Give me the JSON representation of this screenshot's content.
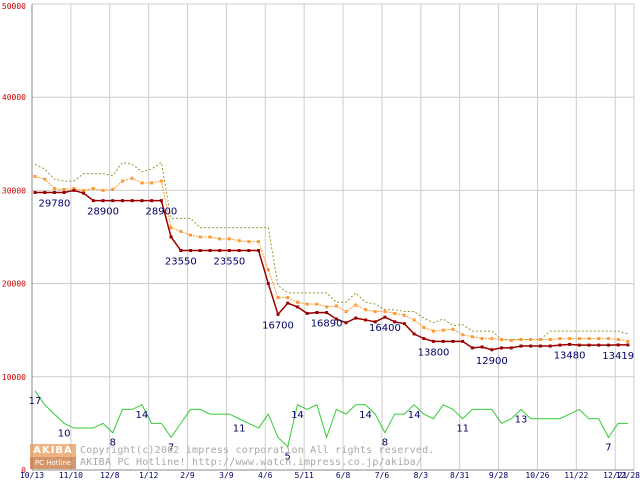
{
  "chart_data": {
    "type": "line",
    "ylim": [
      0,
      50000
    ],
    "y_ticks": [
      {
        "value": 0,
        "label": "0"
      },
      {
        "value": 10000,
        "label": "10000"
      },
      {
        "value": 20000,
        "label": "20000"
      },
      {
        "value": 30000,
        "label": "30000"
      },
      {
        "value": 40000,
        "label": "40000"
      },
      {
        "value": 50000,
        "label": "50000"
      }
    ],
    "x_ticks": [
      {
        "at": 0,
        "label": "10/13"
      },
      {
        "at": 4,
        "label": "11/10"
      },
      {
        "at": 8,
        "label": "12/8"
      },
      {
        "at": 12,
        "label": "1/12"
      },
      {
        "at": 16,
        "label": "2/9"
      },
      {
        "at": 20,
        "label": "3/9"
      },
      {
        "at": 24,
        "label": "4/6"
      },
      {
        "at": 28,
        "label": "5/11"
      },
      {
        "at": 32,
        "label": "6/8"
      },
      {
        "at": 36,
        "label": "7/6"
      },
      {
        "at": 40,
        "label": "8/3"
      },
      {
        "at": 44,
        "label": "8/31"
      },
      {
        "at": 48,
        "label": "9/28"
      },
      {
        "at": 52,
        "label": "10/26"
      },
      {
        "at": 56,
        "label": "11/22"
      },
      {
        "at": 60,
        "label": "12/21"
      },
      {
        "at": 61,
        "label": "12/28"
      }
    ],
    "grid": true,
    "series": [
      {
        "key": "max",
        "color": "#999933",
        "style": "dotted",
        "values": [
          32800,
          32300,
          31200,
          31000,
          31000,
          31800,
          31800,
          31800,
          31600,
          33000,
          32800,
          32000,
          32300,
          33000,
          27000,
          27000,
          27000,
          26000,
          26000,
          26000,
          26000,
          26000,
          26000,
          26000,
          26000,
          19800,
          19000,
          19000,
          19000,
          19000,
          19000,
          18000,
          18000,
          19000,
          18000,
          17800,
          17200,
          17200,
          17000,
          17000,
          16300,
          15800,
          16200,
          15500,
          15600,
          14900,
          14900,
          14900,
          14000,
          14000,
          14000,
          14000,
          14000,
          14900,
          14900,
          14900,
          14900,
          14900,
          14900,
          14900,
          14900,
          14600
        ]
      },
      {
        "key": "average",
        "color": "#ff9933",
        "style": "dotted-markers",
        "values": [
          31500,
          31200,
          30200,
          30100,
          30200,
          30000,
          30200,
          30000,
          30100,
          31000,
          31300,
          30800,
          30800,
          31000,
          26000,
          25600,
          25200,
          25000,
          25000,
          24800,
          24800,
          24600,
          24500,
          24500,
          21500,
          18500,
          18500,
          18000,
          17800,
          17800,
          17500,
          17600,
          17000,
          17700,
          17200,
          17000,
          17000,
          16800,
          16600,
          16100,
          15300,
          14900,
          15000,
          15100,
          14500,
          14300,
          14100,
          14100,
          14000,
          13900,
          14000,
          14000,
          14000,
          14000,
          14100,
          14100,
          14100,
          14100,
          14100,
          14100,
          14000,
          13800
        ]
      },
      {
        "key": "min",
        "color": "#990000",
        "style": "solid-markers",
        "values": [
          29780,
          29780,
          29780,
          29780,
          30000,
          29700,
          28900,
          28900,
          28900,
          28900,
          28900,
          28900,
          28900,
          28900,
          25000,
          23550,
          23550,
          23550,
          23550,
          23550,
          23550,
          23550,
          23550,
          23550,
          20000,
          16700,
          17900,
          17500,
          16800,
          16900,
          16890,
          16200,
          15800,
          16300,
          16100,
          15900,
          16400,
          15900,
          15700,
          14600,
          14100,
          13800,
          13800,
          13800,
          13800,
          13100,
          13200,
          12900,
          13100,
          13100,
          13300,
          13300,
          13300,
          13300,
          13400,
          13480,
          13400,
          13400,
          13400,
          13400,
          13419,
          13419
        ]
      }
    ],
    "count_series": {
      "color": "#33cc33",
      "values": [
        17,
        14,
        12,
        10,
        9,
        9,
        9,
        10,
        8,
        13,
        13,
        14,
        10,
        10,
        7,
        10,
        13,
        13,
        12,
        12,
        12,
        11,
        10,
        9,
        12,
        7,
        5,
        14,
        13,
        14,
        7,
        13,
        12,
        14,
        14,
        12,
        8,
        12,
        12,
        14,
        12,
        11,
        14,
        13,
        11,
        13,
        13,
        13,
        10,
        11,
        13,
        11,
        11,
        11,
        11,
        12,
        13,
        11,
        11,
        7,
        10,
        10
      ]
    },
    "price_labels": [
      {
        "at": 2,
        "text": "29780"
      },
      {
        "at": 7,
        "text": "28900"
      },
      {
        "at": 13,
        "text": "28900"
      },
      {
        "at": 15,
        "text": "23550"
      },
      {
        "at": 20,
        "text": "23550"
      },
      {
        "at": 25,
        "text": "16700"
      },
      {
        "at": 30,
        "text": "16890"
      },
      {
        "at": 36,
        "text": "16400"
      },
      {
        "at": 41,
        "text": "13800"
      },
      {
        "at": 47,
        "text": "12900"
      },
      {
        "at": 55,
        "text": "13480"
      },
      {
        "at": 60,
        "text": "13419"
      }
    ],
    "count_labels": [
      {
        "at": 0,
        "text": "17"
      },
      {
        "at": 3,
        "text": "10"
      },
      {
        "at": 8,
        "text": "8"
      },
      {
        "at": 11,
        "text": "14"
      },
      {
        "at": 14,
        "text": "7"
      },
      {
        "at": 21,
        "text": "11"
      },
      {
        "at": 26,
        "text": "5"
      },
      {
        "at": 27,
        "text": "14"
      },
      {
        "at": 34,
        "text": "14"
      },
      {
        "at": 36,
        "text": "8"
      },
      {
        "at": 39,
        "text": "14"
      },
      {
        "at": 44,
        "text": "11"
      },
      {
        "at": 50,
        "text": "13"
      },
      {
        "at": 59,
        "text": "7"
      }
    ]
  },
  "watermark": {
    "logo_top": "AKIBA",
    "logo_bottom": "PC Hotline",
    "line1": "Copyright(c)2002 impress corporation All rights reserved.",
    "line2": "AKIBA PC Hotline!  http://www.watch.impress.co.jp/akiba/"
  },
  "colors": {
    "grid": "#cccccc",
    "axis": "#888888",
    "label": "#000066",
    "y_label": "#cc0000"
  }
}
